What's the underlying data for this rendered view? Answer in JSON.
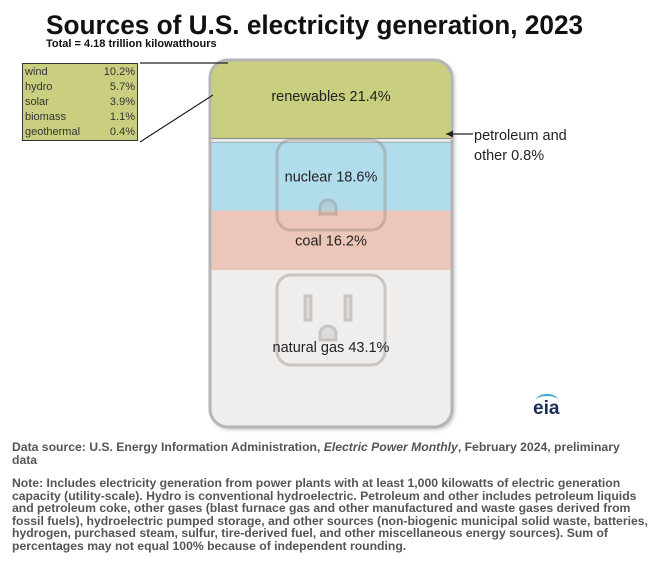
{
  "chart_data": {
    "type": "stacked-bar",
    "title": "Sources of U.S. electricity generation, 2023",
    "subtitle": "Total = 4.18 trillion kilowatthours",
    "unit": "%",
    "categories": [
      "renewables",
      "petroleum and other",
      "nuclear",
      "coal",
      "natural gas"
    ],
    "values": [
      21.4,
      0.8,
      18.6,
      16.2,
      43.1
    ],
    "labels": [
      "renewables 21.4%",
      "",
      "nuclear 18.6%",
      "coal 16.2%",
      "natural gas 43.1%"
    ],
    "colors": [
      "#c9cf7f",
      "#9a9a9a",
      "#b0dcec",
      "#ebc6b9",
      "#efeeed"
    ],
    "callout": {
      "line1": "petroleum and",
      "line2": "other  0.8%"
    },
    "renewables_breakdown": [
      {
        "name": "wind",
        "value": "10.2%"
      },
      {
        "name": "hydro",
        "value": "5.7%"
      },
      {
        "name": "solar",
        "value": "3.9%"
      },
      {
        "name": "biomass",
        "value": "1.1%"
      },
      {
        "name": "geothermal",
        "value": "0.4%"
      }
    ]
  },
  "logo": "eia",
  "source_prefix": "Data source: U.S. Energy Information Administration, ",
  "source_pub": "Electric Power Monthly",
  "source_suffix": ", February 2024, preliminary data",
  "note": "Note: Includes electricity generation from power plants with at least 1,000 kilowatts of electric generation capacity (utility-scale). Hydro is conventional hydroelectric. Petroleum and other includes petroleum liquids and petroleum coke, other gases (blast furnace gas and other manufactured and waste gases derived from fossil fuels), hydroelectric pumped storage, and other sources (non-biogenic municipal solid waste, batteries, hydrogen, purchased steam, sulfur, tire-derived fuel, and other miscellaneous energy sources). Sum of percentages may not equal 100% because of independent rounding."
}
